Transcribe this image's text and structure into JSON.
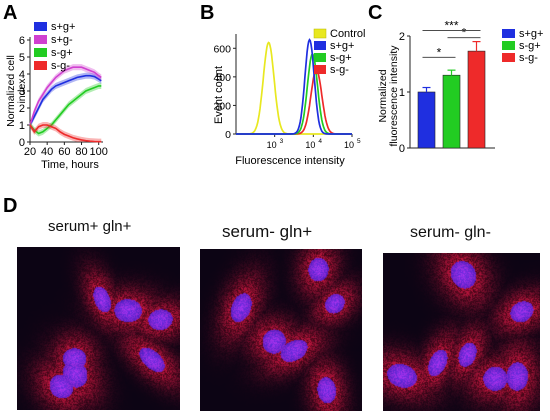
{
  "panels": {
    "A": {
      "letter": "A"
    },
    "B": {
      "letter": "B"
    },
    "C": {
      "letter": "C"
    },
    "D": {
      "letter": "D"
    }
  },
  "colors": {
    "s_g_plus": "#1f2fe0",
    "s_g_minus": "#d040d0",
    "sm_g_plus": "#22cc22",
    "sm_g_minus": "#ee2a2a",
    "control": "#e8e820"
  },
  "chart_data": [
    {
      "panel": "A",
      "type": "line",
      "xlabel": "Time, hours",
      "ylabel": "Normalized cell index",
      "xlim": [
        20,
        105
      ],
      "ylim": [
        0,
        6
      ],
      "xticks": [
        20,
        40,
        60,
        80,
        100
      ],
      "yticks": [
        0,
        1,
        2,
        3,
        4,
        5,
        6
      ],
      "legend_position": "top-left",
      "series": [
        {
          "name": "s+g+",
          "x": [
            20,
            25,
            30,
            35,
            40,
            45,
            50,
            55,
            60,
            65,
            70,
            75,
            80,
            85,
            90,
            95,
            100,
            103
          ],
          "y": [
            1.0,
            1.5,
            2.0,
            2.5,
            2.8,
            3.1,
            3.3,
            3.4,
            3.5,
            3.6,
            3.7,
            3.8,
            3.85,
            3.9,
            3.9,
            3.85,
            3.7,
            3.6
          ]
        },
        {
          "name": "s+g-",
          "x": [
            20,
            25,
            30,
            35,
            40,
            45,
            50,
            55,
            60,
            65,
            70,
            75,
            80,
            85,
            90,
            95,
            100,
            103
          ],
          "y": [
            1.0,
            1.8,
            2.4,
            2.8,
            3.2,
            3.5,
            3.8,
            4.0,
            4.2,
            4.3,
            4.4,
            4.4,
            4.4,
            4.3,
            4.2,
            4.1,
            3.9,
            3.8
          ]
        },
        {
          "name": "s-g+",
          "x": [
            20,
            25,
            30,
            35,
            40,
            45,
            50,
            55,
            60,
            65,
            70,
            75,
            80,
            85,
            90,
            95,
            100,
            103
          ],
          "y": [
            1.0,
            0.7,
            0.5,
            0.6,
            0.8,
            1.0,
            1.3,
            1.6,
            1.9,
            2.2,
            2.4,
            2.6,
            2.8,
            3.0,
            3.1,
            3.2,
            3.3,
            3.3
          ]
        },
        {
          "name": "s-g-",
          "x": [
            20,
            25,
            30,
            35,
            40,
            45,
            50,
            55,
            60,
            65,
            70,
            75,
            80,
            85,
            90,
            95,
            100,
            103
          ],
          "y": [
            1.0,
            0.6,
            0.9,
            1.0,
            1.0,
            0.9,
            0.8,
            0.6,
            0.45,
            0.35,
            0.25,
            0.18,
            0.12,
            0.08,
            0.05,
            0.03,
            0.02,
            0.02
          ]
        }
      ]
    },
    {
      "panel": "B",
      "type": "line",
      "xlabel": "Fluorescence intensity",
      "ylabel": "Event count",
      "x_scale": "log",
      "xlim": [
        100,
        100000
      ],
      "ylim": [
        0,
        700
      ],
      "yticks": [
        0,
        200,
        400,
        600
      ],
      "xticks": [
        {
          "value": 1000,
          "base": "10",
          "exp": "3"
        },
        {
          "value": 10000,
          "base": "10",
          "exp": "4"
        },
        {
          "value": 100000,
          "base": "10",
          "exp": "5"
        }
      ],
      "legend_position": "top-right",
      "series": [
        {
          "name": "Control",
          "peak_x": 700,
          "peak_y": 640,
          "width_decades": 0.14
        },
        {
          "name": "s+g+",
          "peak_x": 8000,
          "peak_y": 660,
          "width_decades": 0.12
        },
        {
          "name": "s-g+",
          "peak_x": 9500,
          "peak_y": 560,
          "width_decades": 0.13
        },
        {
          "name": "s-g-",
          "peak_x": 12000,
          "peak_y": 450,
          "width_decades": 0.14
        }
      ]
    },
    {
      "panel": "C",
      "type": "bar",
      "ylabel": "Normalized fluorescence intensity",
      "ylim": [
        0,
        2
      ],
      "yticks": [
        0,
        1,
        2
      ],
      "legend_position": "top-right",
      "categories": [
        "s+g+",
        "s-g+",
        "s-g-"
      ],
      "values": [
        1.0,
        1.3,
        1.73
      ],
      "errors": [
        0.08,
        0.09,
        0.17
      ],
      "significance": [
        {
          "from": 0,
          "to": 1,
          "label": "*",
          "y": 1.62
        },
        {
          "from": 1,
          "to": 2,
          "label": "*",
          "y": 1.97
        },
        {
          "from": 0,
          "to": 2,
          "label": "***",
          "y": 2.1
        }
      ]
    }
  ],
  "micrographs": [
    {
      "label": "serum+ gln+",
      "seed": 3,
      "cells": 7
    },
    {
      "label": "serum- gln+",
      "seed": 11,
      "cells": 6
    },
    {
      "label": "serum- gln-",
      "seed": 23,
      "cells": 7
    }
  ]
}
